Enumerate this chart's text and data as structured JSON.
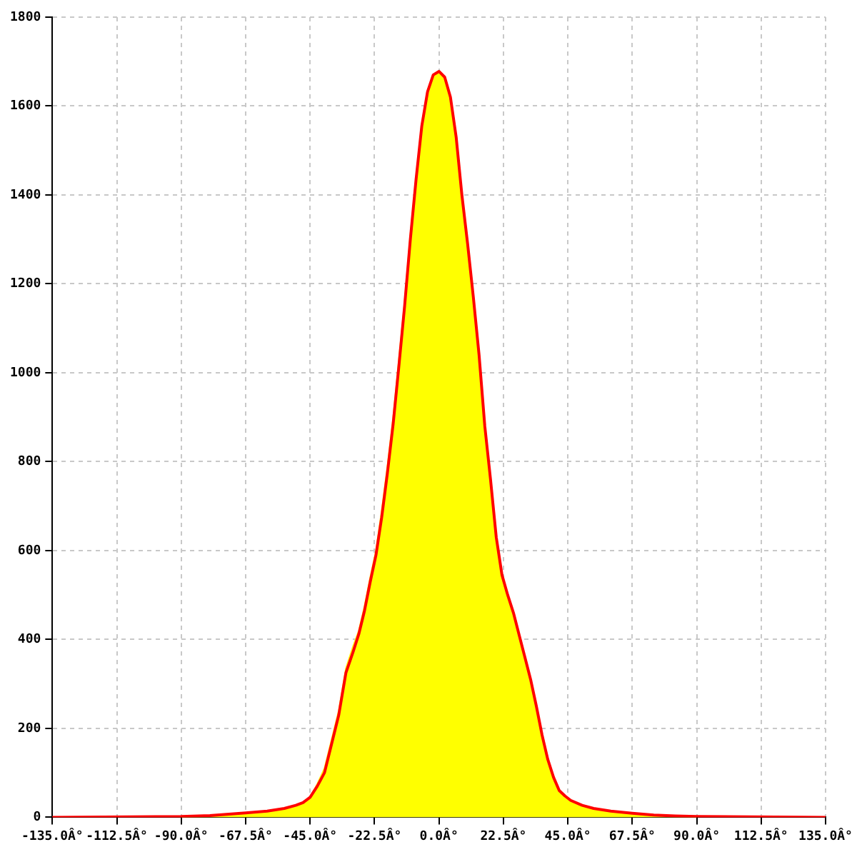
{
  "chart_data": {
    "type": "area",
    "x": [
      -90,
      -80,
      -67.5,
      -60,
      -54,
      -50,
      -47.5,
      -45,
      -42.5,
      -40,
      -37.5,
      -35,
      -32.5,
      -30,
      -28,
      -26,
      -24,
      -22,
      -20,
      -18,
      -16,
      -14,
      -12,
      -10,
      -8,
      -6,
      -4,
      -2,
      0,
      2,
      4,
      6,
      8,
      10,
      12,
      14,
      16,
      18,
      20,
      22,
      24,
      26,
      28,
      30,
      32,
      34,
      36,
      38,
      40,
      42,
      44,
      46,
      50,
      54,
      60,
      67.5,
      75,
      82.5,
      90
    ],
    "series": [
      {
        "type": "area",
        "color": "#ffff00",
        "values": [
          2,
          4,
          10,
          14,
          20,
          27,
          33,
          45,
          75,
          110,
          175,
          240,
          335,
          385,
          420,
          475,
          540,
          600,
          690,
          790,
          900,
          1030,
          1160,
          1310,
          1440,
          1560,
          1635,
          1670,
          1678,
          1665,
          1620,
          1530,
          1400,
          1290,
          1170,
          1040,
          880,
          760,
          630,
          545,
          500,
          460,
          410,
          360,
          310,
          250,
          185,
          130,
          90,
          60,
          48,
          38,
          27,
          20,
          14,
          9,
          5,
          3,
          2
        ]
      },
      {
        "type": "line",
        "color": "#ff0000",
        "x": [
          -135,
          -90,
          -80,
          -67.5,
          -60,
          -54,
          -50,
          -47.5,
          -45,
          -42.5,
          -40,
          -37.5,
          -35,
          -32.5,
          -30,
          -28,
          -26,
          -24,
          -22,
          -20,
          -18,
          -16,
          -14,
          -12,
          -10,
          -8,
          -6,
          -4,
          -2,
          0,
          2,
          4,
          6,
          8,
          10,
          12,
          14,
          16,
          18,
          20,
          22,
          24,
          26,
          28,
          30,
          32,
          34,
          36,
          38,
          40,
          42,
          44,
          46,
          50,
          54,
          60,
          67.5,
          75,
          82.5,
          90,
          135
        ],
        "values": [
          0,
          2,
          4,
          10,
          14,
          20,
          27,
          33,
          45,
          70,
          100,
          165,
          230,
          325,
          372,
          412,
          465,
          530,
          590,
          675,
          775,
          885,
          1015,
          1150,
          1300,
          1435,
          1555,
          1632,
          1670,
          1678,
          1665,
          1620,
          1530,
          1400,
          1290,
          1170,
          1040,
          880,
          760,
          630,
          545,
          500,
          460,
          410,
          360,
          310,
          250,
          185,
          130,
          90,
          60,
          48,
          38,
          27,
          20,
          14,
          9,
          5,
          3,
          2,
          0
        ]
      }
    ],
    "xlim": [
      -135,
      135
    ],
    "xticks": [
      {
        "value": -135,
        "label": "-135.0Â°"
      },
      {
        "value": -112.5,
        "label": "-112.5Â°"
      },
      {
        "value": -90,
        "label": "-90.0Â°"
      },
      {
        "value": -67.5,
        "label": "-67.5Â°"
      },
      {
        "value": -45,
        "label": "-45.0Â°"
      },
      {
        "value": -22.5,
        "label": "-22.5Â°"
      },
      {
        "value": 0,
        "label": "0.0Â°"
      },
      {
        "value": 22.5,
        "label": "22.5Â°"
      },
      {
        "value": 45,
        "label": "45.0Â°"
      },
      {
        "value": 67.5,
        "label": "67.5Â°"
      },
      {
        "value": 90,
        "label": "90.0Â°"
      },
      {
        "value": 112.5,
        "label": "112.5Â°"
      },
      {
        "value": 135,
        "label": "135.0Â°"
      }
    ],
    "ylim": [
      0,
      1800
    ],
    "yticks": [
      0,
      200,
      400,
      600,
      800,
      1000,
      1200,
      1400,
      1600,
      1800
    ],
    "grid": true,
    "marker": "none"
  }
}
